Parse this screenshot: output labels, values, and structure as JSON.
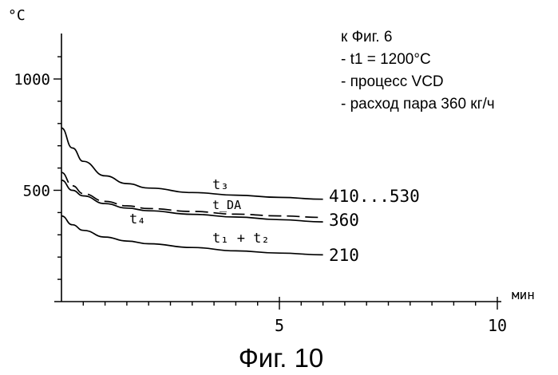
{
  "chart_data": {
    "type": "line",
    "title": "",
    "ylabel": "°C",
    "xlabel": "мин",
    "xlim": [
      0,
      10
    ],
    "ylim": [
      0,
      1200
    ],
    "x_ticks": [
      {
        "value": 5,
        "label": "5"
      },
      {
        "value": 10,
        "label": "10"
      }
    ],
    "y_ticks": [
      {
        "value": 500,
        "label": "500"
      },
      {
        "value": 1000,
        "label": "1000"
      }
    ],
    "grid": false,
    "series": [
      {
        "name": "t3",
        "label": "t₃",
        "end_label": "410...530",
        "style": "solid",
        "x": [
          0,
          0.25,
          0.5,
          1,
          1.5,
          2,
          3,
          4,
          5,
          6
        ],
        "y": [
          780,
          690,
          630,
          565,
          530,
          510,
          490,
          478,
          468,
          460
        ]
      },
      {
        "name": "tDA",
        "label": "t_DA",
        "end_label": "360",
        "style": "dashed",
        "x": [
          0,
          0.25,
          0.5,
          1,
          1.5,
          2,
          3,
          4,
          5,
          6
        ],
        "y": [
          580,
          520,
          485,
          450,
          430,
          418,
          405,
          393,
          385,
          378
        ]
      },
      {
        "name": "t4",
        "label": "t₄",
        "end_label": "",
        "style": "solid",
        "x": [
          0,
          0.25,
          0.5,
          1,
          1.5,
          2,
          3,
          4,
          5,
          6
        ],
        "y": [
          545,
          500,
          475,
          440,
          420,
          408,
          392,
          380,
          368,
          358
        ]
      },
      {
        "name": "t1+t2",
        "label": "t₁ + t₂",
        "end_label": "210",
        "style": "solid",
        "x": [
          0,
          0.25,
          0.5,
          1,
          1.5,
          2,
          3,
          4,
          5,
          6
        ],
        "y": [
          385,
          345,
          320,
          290,
          272,
          260,
          243,
          228,
          218,
          210
        ]
      }
    ],
    "annotation": [
      "к Фиг. 6",
      "- t1 = 1200°C",
      "- процесс VCD",
      "- расход пара 360 кг/ч"
    ]
  },
  "figure": {
    "caption": "Фиг. 10"
  }
}
